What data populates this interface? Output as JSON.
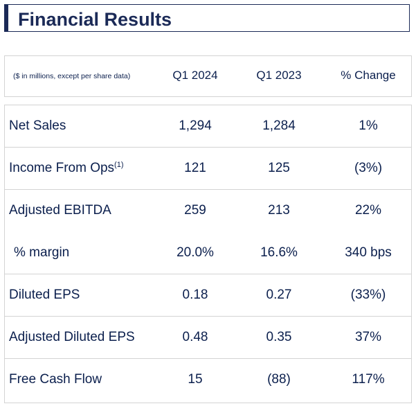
{
  "title": "Financial Results",
  "header": {
    "note": "($ in millions, except per share data)",
    "columns": [
      "Q1 2024",
      "Q1 2023",
      "% Change"
    ]
  },
  "rows": [
    {
      "label": "Net Sales",
      "q1_2024": "1,294",
      "q1_2023": "1,284",
      "change": "1%"
    },
    {
      "label": "Income From Ops",
      "footnote": "(1)",
      "q1_2024": "121",
      "q1_2023": "125",
      "change": "(3%)"
    },
    {
      "label": "Adjusted EBITDA",
      "q1_2024": "259",
      "q1_2023": "213",
      "change": "22%"
    },
    {
      "label": "% margin",
      "q1_2024": "20.0%",
      "q1_2023": "16.6%",
      "change": "340 bps"
    },
    {
      "label": "Diluted EPS",
      "q1_2024": "0.18",
      "q1_2023": "0.27",
      "change": "(33%)"
    },
    {
      "label": "Adjusted Diluted EPS",
      "q1_2024": "0.48",
      "q1_2023": "0.35",
      "change": "37%"
    },
    {
      "label": "Free Cash Flow",
      "q1_2024": "15",
      "q1_2023": "(88)",
      "change": "117%"
    }
  ]
}
